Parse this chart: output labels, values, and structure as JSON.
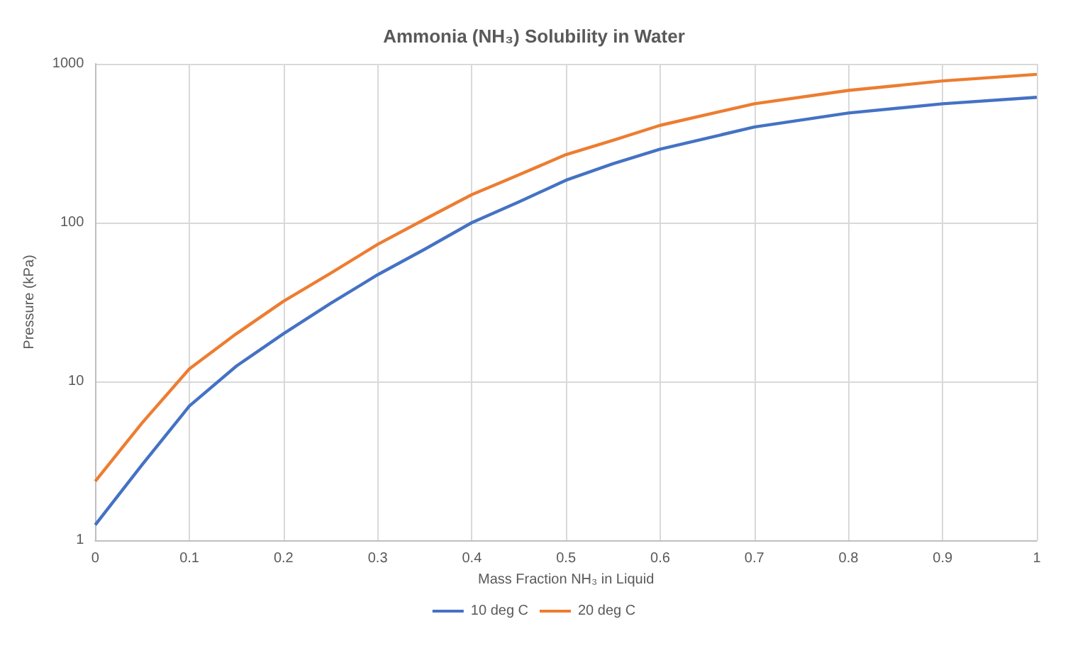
{
  "chart_data": {
    "type": "line",
    "title": "Ammonia (NH₃) Solubility in Water",
    "xlabel": "Mass Fraction NH₃ in Liquid",
    "ylabel": "Pressure (kPa)",
    "x": [
      0,
      0.05,
      0.1,
      0.15,
      0.2,
      0.25,
      0.3,
      0.35,
      0.4,
      0.45,
      0.5,
      0.55,
      0.6,
      0.7,
      0.8,
      0.9,
      1
    ],
    "series": [
      {
        "name": "10 deg C",
        "color": "#4472c4",
        "values": [
          1.25,
          3.0,
          7,
          12.5,
          20,
          31,
          47,
          68,
          100,
          135,
          185,
          235,
          290,
          400,
          490,
          560,
          615
        ]
      },
      {
        "name": "20 deg C",
        "color": "#ed7d31",
        "values": [
          2.35,
          5.5,
          12,
          20,
          32,
          48,
          73,
          105,
          150,
          200,
          268,
          330,
          410,
          560,
          680,
          780,
          858
        ]
      }
    ],
    "xlim": [
      0,
      1
    ],
    "xticks": [
      0,
      0.1,
      0.2,
      0.3,
      0.4,
      0.5,
      0.6,
      0.7,
      0.8,
      0.9,
      1
    ],
    "ylim": [
      1,
      1000
    ],
    "yticks": [
      1,
      10,
      100,
      1000
    ],
    "log": "y",
    "grid": true,
    "legend": "bottom",
    "marker": "none",
    "line_style": "solid"
  }
}
